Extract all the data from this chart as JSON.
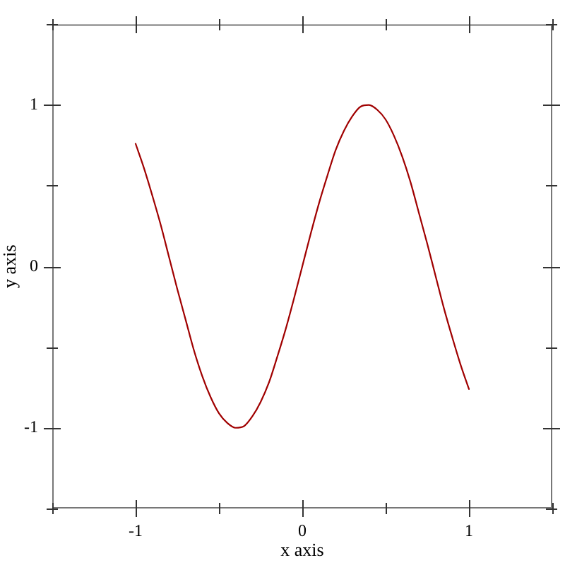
{
  "chart_data": {
    "type": "line",
    "xlabel": "x axis",
    "ylabel": "y axis",
    "x": [
      -1,
      -0.95,
      -0.9,
      -0.85,
      -0.8,
      -0.75,
      -0.7,
      -0.65,
      -0.6,
      -0.55,
      -0.5,
      -0.45,
      -0.4,
      -0.35,
      -0.3,
      -0.25,
      -0.2,
      -0.15,
      -0.1,
      -0.05,
      0,
      0.05,
      0.1,
      0.15,
      0.2,
      0.25,
      0.3,
      0.35,
      0.4,
      0.45,
      0.5,
      0.55,
      0.6,
      0.65,
      0.7,
      0.75,
      0.8,
      0.85,
      0.9,
      0.95,
      1
    ],
    "series": [
      {
        "color": "#a00000",
        "values": [
          0.76,
          0.61,
          0.44,
          0.26,
          0.06,
          -0.14,
          -0.33,
          -0.52,
          -0.68,
          -0.81,
          -0.91,
          -0.97,
          -1.0,
          -0.99,
          -0.93,
          -0.84,
          -0.72,
          -0.56,
          -0.39,
          -0.2,
          0,
          0.2,
          0.39,
          0.56,
          0.72,
          0.84,
          0.93,
          0.99,
          1.0,
          0.97,
          0.91,
          0.81,
          0.68,
          0.52,
          0.33,
          0.14,
          -0.06,
          -0.26,
          -0.44,
          -0.61,
          -0.76
        ]
      }
    ],
    "xlim": [
      -1.5,
      1.5
    ],
    "ylim": [
      -1.5,
      1.5
    ],
    "xticks": [
      {
        "value": -1.5,
        "label": null
      },
      -1,
      {
        "value": -0.5,
        "label": null
      },
      0,
      {
        "value": 0.5,
        "label": null
      },
      1,
      {
        "value": 1.5,
        "label": null
      }
    ],
    "yticks": [
      {
        "value": -1.5,
        "label": null
      },
      -1,
      {
        "value": -0.5,
        "label": null
      },
      0,
      {
        "value": 0.5,
        "label": null
      },
      1,
      {
        "value": 1.5,
        "label": null
      }
    ],
    "line_style": "solid"
  }
}
